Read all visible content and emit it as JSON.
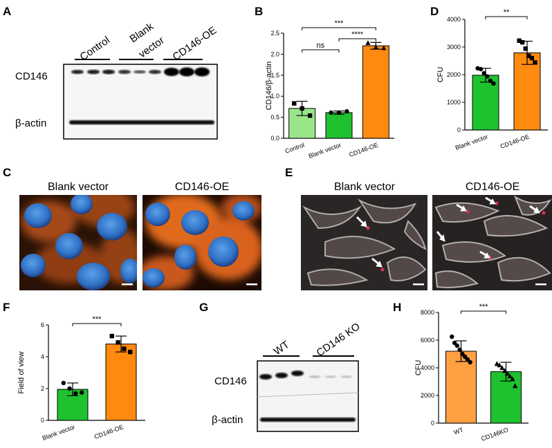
{
  "panels": {
    "A": {
      "letter": "A",
      "groups": [
        "Control",
        "Blank\nvector",
        "CD146-OE"
      ],
      "group_line1": [
        "Control",
        "Blank",
        "CD146-OE"
      ],
      "group_line2": [
        "",
        "vector",
        ""
      ],
      "rows": [
        "CD146",
        "β-actin"
      ]
    },
    "B": {
      "letter": "B"
    },
    "C": {
      "letter": "C",
      "titles": [
        "Blank vector",
        "CD146-OE"
      ]
    },
    "D": {
      "letter": "D"
    },
    "E": {
      "letter": "E",
      "titles": [
        "Blank vector",
        "CD146-OE"
      ]
    },
    "F": {
      "letter": "F"
    },
    "G": {
      "letter": "G",
      "groups": [
        "WT",
        "CD146 KO"
      ],
      "rows": [
        "CD146",
        "β-actin"
      ]
    },
    "H": {
      "letter": "H"
    }
  },
  "chart_data": [
    {
      "panel": "B",
      "type": "bar",
      "categories": [
        "Control",
        "Blank vector",
        "CD146-OE"
      ],
      "values": [
        0.71,
        0.61,
        2.2
      ],
      "errors": [
        0.17,
        0.04,
        0.08
      ],
      "points": [
        [
          0.83,
          0.71,
          0.54
        ],
        [
          0.61,
          0.61,
          0.64
        ],
        [
          2.27,
          2.17,
          2.15
        ]
      ],
      "colors": [
        "#99e68a",
        "#1ec12e",
        "#ff8a10"
      ],
      "xlabel": "",
      "ylabel": "CD146/β-actin",
      "ylim": [
        0,
        2.5
      ],
      "yticks": [
        "0.0",
        "0.5",
        "1.0",
        "1.5",
        "2.0",
        "2.5"
      ],
      "significance": [
        {
          "from": 0,
          "to": 1,
          "label": "ns"
        },
        {
          "from": 1,
          "to": 2,
          "label": "****"
        },
        {
          "from": 0,
          "to": 2,
          "label": "***"
        }
      ]
    },
    {
      "panel": "D",
      "type": "bar",
      "categories": [
        "Blank vector",
        "CD146-OE"
      ],
      "values": [
        1980,
        2790
      ],
      "errors": [
        250,
        420
      ],
      "points": [
        [
          2230,
          2200,
          2050,
          1940,
          1780,
          1680
        ],
        [
          3230,
          3170,
          2940,
          2680,
          2600,
          2440
        ]
      ],
      "colors": [
        "#1ec12e",
        "#ff8a10"
      ],
      "xlabel": "",
      "ylabel": "CFU",
      "ylim": [
        0,
        4000
      ],
      "yticks": [
        "0",
        "1000",
        "2000",
        "3000",
        "4000"
      ],
      "significance": [
        {
          "from": 0,
          "to": 1,
          "label": "**"
        }
      ]
    },
    {
      "panel": "F",
      "type": "bar",
      "categories": [
        "Blank vector",
        "CD146-OE"
      ],
      "values": [
        1.95,
        4.8
      ],
      "errors": [
        0.4,
        0.5
      ],
      "points": [
        [
          2.35,
          2.0,
          1.7,
          1.75
        ],
        [
          5.3,
          4.9,
          4.5,
          4.3
        ]
      ],
      "colors": [
        "#1ec12e",
        "#ff8a10"
      ],
      "xlabel": "",
      "ylabel": "Field of view",
      "ylim": [
        0,
        6
      ],
      "yticks": [
        "0",
        "2",
        "4",
        "6"
      ],
      "significance": [
        {
          "from": 0,
          "to": 1,
          "label": "***"
        }
      ]
    },
    {
      "panel": "H",
      "type": "bar",
      "categories": [
        "WT",
        "CD146KO"
      ],
      "values": [
        5200,
        3720
      ],
      "errors": [
        750,
        680
      ],
      "points": [
        [
          6250,
          5800,
          5600,
          5300,
          5000,
          4800,
          4600,
          4400
        ],
        [
          4300,
          4200,
          4000,
          3800,
          3600,
          3400,
          3200,
          2700
        ]
      ],
      "colors": [
        "#ffa040",
        "#1ec12e"
      ],
      "xlabel": "",
      "ylabel": "CFU",
      "ylim": [
        0,
        8000
      ],
      "yticks": [
        "0",
        "2000",
        "4000",
        "6000",
        "8000"
      ],
      "significance": [
        {
          "from": 0,
          "to": 1,
          "label": "***"
        }
      ]
    }
  ]
}
